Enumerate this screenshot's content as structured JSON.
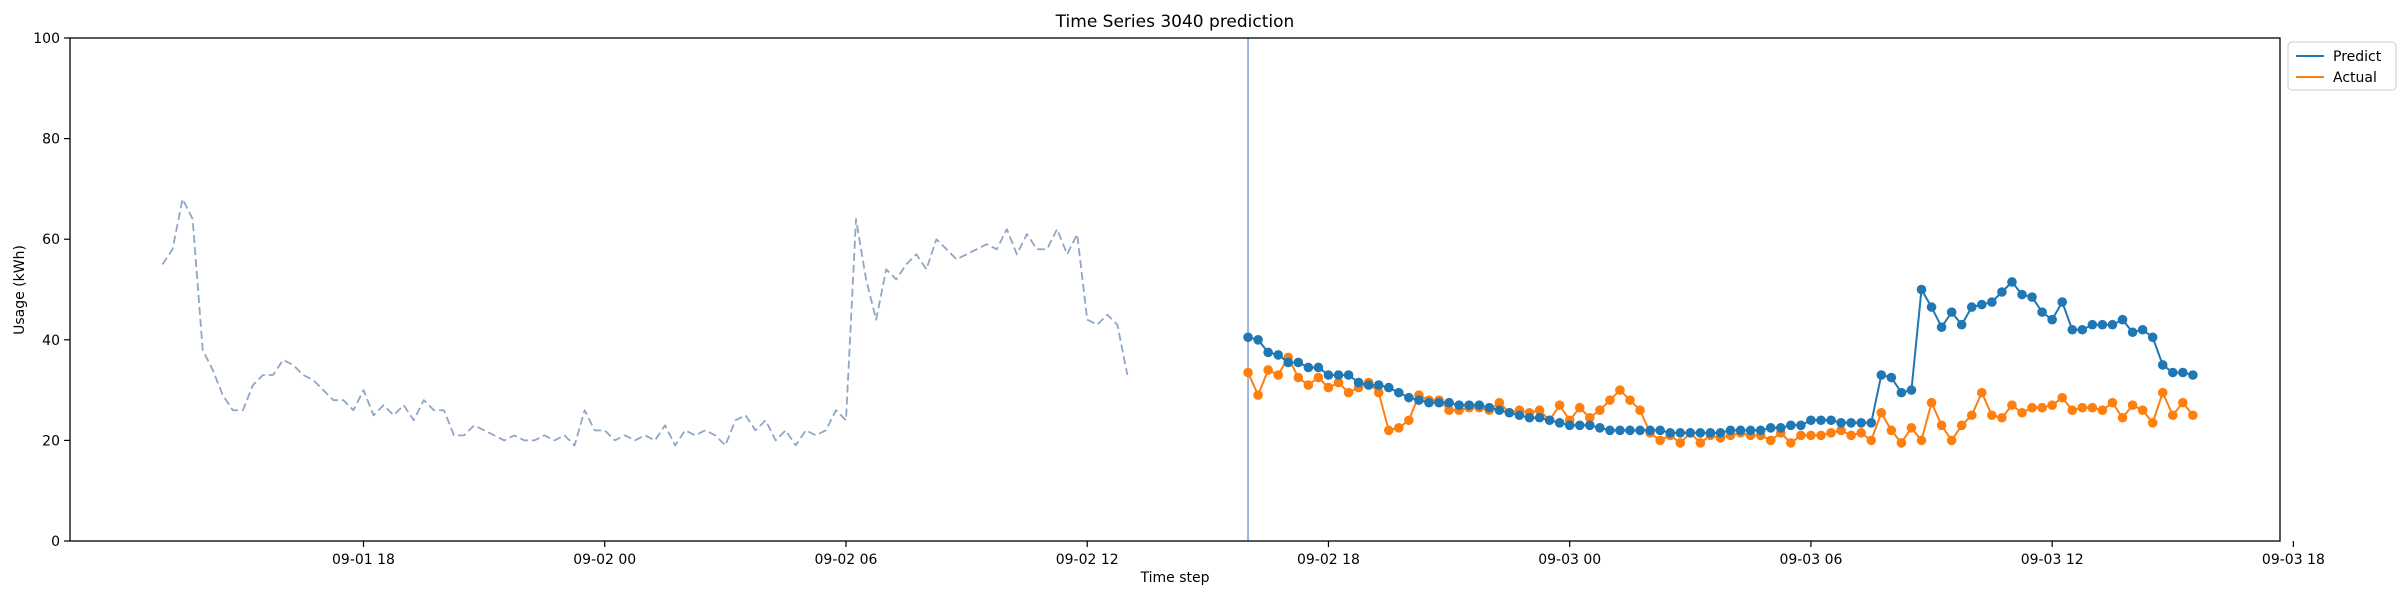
{
  "chart_data": {
    "type": "line",
    "title": "Time Series 3040 prediction",
    "xlabel": "Time step",
    "ylabel": "Usage (kWh)",
    "ylim": [
      0,
      100
    ],
    "xlim": [
      "09-01 10:42",
      "09-03 17:40"
    ],
    "x_ticks": [
      "09-01 18",
      "09-02 00",
      "09-02 06",
      "09-02 12",
      "09-02 18",
      "09-03 00",
      "09-03 06",
      "09-03 12",
      "09-03 18"
    ],
    "y_ticks": [
      0,
      20,
      40,
      60,
      80,
      100
    ],
    "grid": false,
    "legend": {
      "placement": "top-right-outside",
      "entries": [
        "Predict",
        "Actual"
      ]
    },
    "forecast_start": "09-02 16:00",
    "series": [
      {
        "name": "",
        "role": "history",
        "style": "dashed",
        "color": "#8fa6c6",
        "start": "09-01 13:00",
        "step_minutes": 15,
        "values": [
          55,
          58,
          68,
          64,
          38,
          34,
          29,
          26,
          26,
          31,
          33,
          33,
          36,
          35,
          33,
          32,
          30,
          28,
          28,
          26,
          30,
          25,
          27,
          25,
          27,
          24,
          28,
          26,
          26,
          21,
          21,
          23,
          22,
          21,
          20,
          21,
          20,
          20,
          21,
          20,
          21,
          19,
          26,
          22,
          22,
          20,
          21,
          20,
          21,
          20,
          23,
          19,
          22,
          21,
          22,
          21,
          19,
          24,
          25,
          22,
          24,
          20,
          22,
          19,
          22,
          21,
          22,
          26,
          24,
          64,
          52,
          44,
          54,
          52,
          55,
          57,
          54,
          60,
          58,
          56,
          57,
          58,
          59,
          58,
          62,
          57,
          61,
          58,
          58,
          62,
          57,
          61,
          44,
          43,
          45,
          43,
          33
        ]
      },
      {
        "name": "Predict",
        "role": "prediction",
        "style": "solid-marker",
        "color": "#1f77b4",
        "start": "09-02 16:00",
        "step_minutes": 15,
        "values": [
          40.5,
          40,
          37.5,
          37,
          35.5,
          35.5,
          34.5,
          34.5,
          33,
          33,
          33,
          31.5,
          31,
          31,
          30.5,
          29.5,
          28.5,
          28,
          27.5,
          27.5,
          27.5,
          27,
          27,
          27,
          26.5,
          26,
          25.5,
          25,
          24.5,
          24.5,
          24,
          23.5,
          23,
          23,
          23,
          22.5,
          22,
          22,
          22,
          22,
          22,
          22,
          21.5,
          21.5,
          21.5,
          21.5,
          21.5,
          21.5,
          22,
          22,
          22,
          22,
          22.5,
          22.5,
          23,
          23,
          24,
          24,
          24,
          23.5,
          23.5,
          23.5,
          23.5,
          33,
          32.5,
          29.5,
          30,
          50,
          46.5,
          42.5,
          45.5,
          43,
          46.5,
          47,
          47.5,
          49.5,
          51.5,
          49,
          48.5,
          45.5,
          44,
          47.5,
          42,
          42,
          43,
          43,
          43,
          44,
          41.5,
          42,
          40.5,
          35,
          33.5,
          33.5,
          33
        ]
      },
      {
        "name": "Actual",
        "role": "actual",
        "style": "solid-marker",
        "color": "#ff7f0e",
        "start": "09-02 16:00",
        "step_minutes": 15,
        "values": [
          33.5,
          29,
          34,
          33,
          36.5,
          32.5,
          31,
          32.5,
          30.5,
          31.5,
          29.5,
          30.5,
          31.5,
          29.5,
          22,
          22.5,
          24,
          29,
          28,
          28,
          26,
          26,
          26.5,
          26.5,
          26,
          27.5,
          25.5,
          26,
          25.5,
          26,
          24,
          27,
          24,
          26.5,
          24.5,
          26,
          28,
          30,
          28,
          26,
          21.5,
          20,
          21,
          19.5,
          21.5,
          19.5,
          21,
          20.5,
          21,
          21.5,
          21,
          21,
          20,
          21.5,
          19.5,
          21,
          21,
          21,
          21.5,
          22,
          21,
          21.5,
          20,
          25.5,
          22,
          19.5,
          22.5,
          20,
          27.5,
          23,
          20,
          23,
          25,
          29.5,
          25,
          24.5,
          27,
          25.5,
          26.5,
          26.5,
          27,
          28.5,
          26,
          26.5,
          26.5,
          26,
          27.5,
          24.5,
          27,
          26,
          23.5,
          29.5,
          25,
          27.5,
          25
        ]
      }
    ]
  }
}
